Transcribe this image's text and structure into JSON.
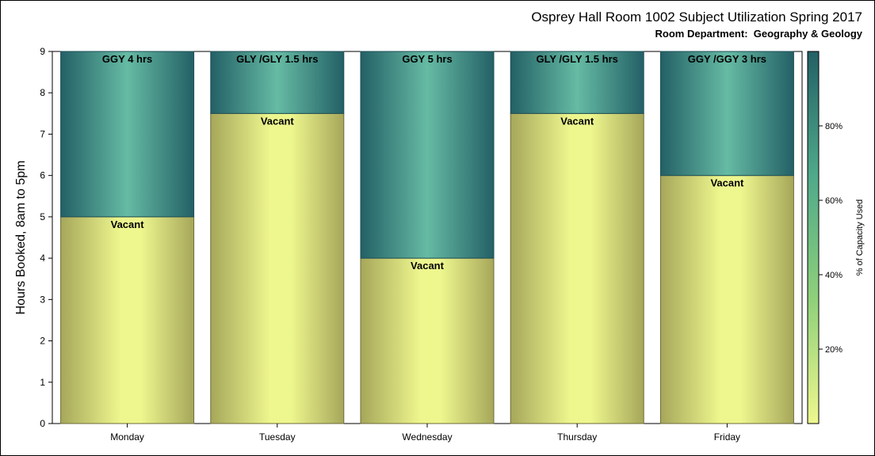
{
  "chart_data": {
    "type": "bar",
    "stacked": true,
    "title": "Osprey Hall Room 1002 Subject Utilization Spring 2017",
    "subtitle": "Room Department:  Geography & Geology",
    "ylabel": "Hours Booked, 8am to 5pm",
    "ylim": [
      0,
      9
    ],
    "yticks": [
      0,
      1,
      2,
      3,
      4,
      5,
      6,
      7,
      8,
      9
    ],
    "categories": [
      "Monday",
      "Tuesday",
      "Wednesday",
      "Thursday",
      "Friday"
    ],
    "series": [
      {
        "name": "Vacant",
        "values": [
          5,
          7.5,
          4,
          7.5,
          6
        ]
      },
      {
        "name": "",
        "values": [
          4,
          1.5,
          5,
          1.5,
          3
        ]
      }
    ],
    "segment_labels": {
      "booked": [
        "GGY 4 hrs",
        "GLY /GLY 1.5 hrs",
        "GGY 5 hrs",
        "GLY /GLY 1.5 hrs",
        "GGY /GGY 3 hrs"
      ],
      "vacant": [
        "Vacant",
        "Vacant",
        "Vacant",
        "Vacant",
        "Vacant"
      ]
    },
    "colors": {
      "vacant_center": "#eef78e",
      "vacant_edge": "#a6a75a",
      "booked_light": "#66bba4",
      "booked_dark": "#236066",
      "frame": "#000000"
    },
    "colorbar": {
      "label": "% of Capacity Used",
      "ticks": [
        "20%",
        "40%",
        "60%",
        "80%"
      ],
      "tick_values": [
        20,
        40,
        60,
        80
      ],
      "range": [
        0,
        100
      ],
      "stops": [
        "#eef78e",
        "#8fd07a",
        "#4fa98a",
        "#236066"
      ]
    },
    "legend_position": "right",
    "grid": false
  }
}
